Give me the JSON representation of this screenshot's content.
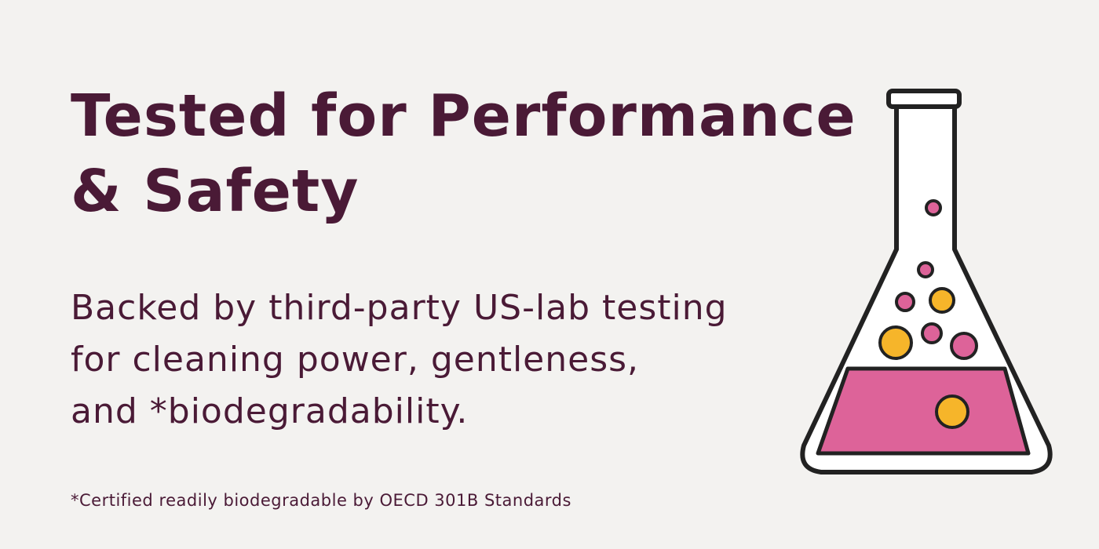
{
  "header": {
    "title_lines": [
      "Tested for Performance",
      "& Safety"
    ]
  },
  "body": {
    "lines": [
      "Backed by third-party US-lab testing",
      "for cleaning power, gentleness,",
      "and *biodegradability."
    ]
  },
  "footnote": "*Certified readily biodegradable by OECD 301B Standards"
}
